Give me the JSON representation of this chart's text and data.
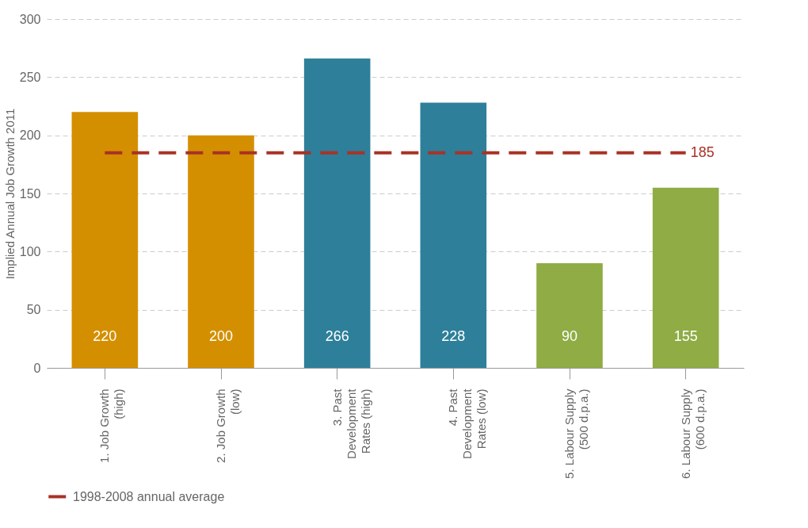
{
  "chart_data": {
    "type": "bar",
    "ylabel": "Implied Annual Job Growth 2011",
    "categories": [
      "1. Job Growth\n(high)",
      "2. Job Growth\n(low)",
      "3. Past\nDevelopment\nRates (high)",
      "4. Past\nDevelopment\nRates (low)",
      "5. Labour Supply\n(500 d.p.a.)",
      "6. Labour Supply\n(600 d.p.a.)"
    ],
    "values": [
      220,
      200,
      266,
      228,
      90,
      155
    ],
    "colors": [
      "#d48f00",
      "#d48f00",
      "#2e7f9a",
      "#2e7f9a",
      "#8fac45",
      "#8fac45"
    ],
    "ylim": [
      0,
      300
    ],
    "yticks": [
      0,
      50,
      100,
      150,
      200,
      250,
      300
    ],
    "grid": "y",
    "data_labels": true,
    "legend": "bottom",
    "ref_lines": [
      {
        "axis": "y",
        "value": 185,
        "label": "1998-2008 annual average",
        "color": "#a93226",
        "line_style": "dashed"
      }
    ],
    "annotations": [
      "185"
    ]
  }
}
